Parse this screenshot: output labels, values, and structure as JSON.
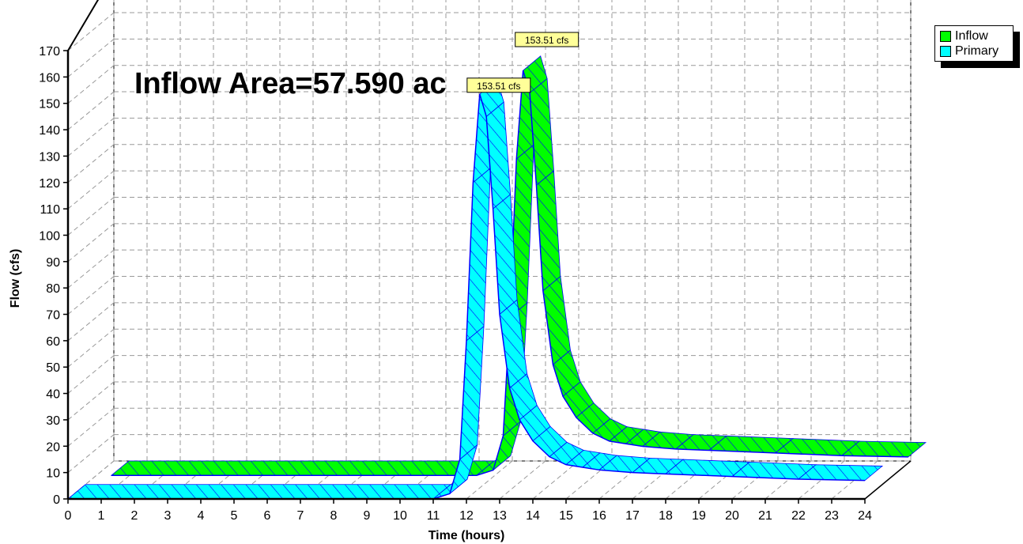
{
  "chart_data": {
    "type": "area",
    "title": "Inflow Area=57.590 ac",
    "xlabel": "Time  (hours)",
    "ylabel": "Flow  (cfs)",
    "xlim": [
      0,
      24
    ],
    "ylim": [
      0,
      170
    ],
    "x_ticks": [
      "0",
      "1",
      "2",
      "3",
      "4",
      "5",
      "6",
      "7",
      "8",
      "9",
      "10",
      "11",
      "12",
      "13",
      "14",
      "15",
      "16",
      "17",
      "18",
      "19",
      "20",
      "21",
      "22",
      "23",
      "24"
    ],
    "y_ticks": [
      "0",
      "10",
      "20",
      "30",
      "40",
      "50",
      "60",
      "70",
      "80",
      "90",
      "100",
      "110",
      "120",
      "130",
      "140",
      "150",
      "160",
      "170"
    ],
    "grid": true,
    "legend_position": "top-right",
    "x": [
      0,
      11,
      11.5,
      11.8,
      12.0,
      12.2,
      12.4,
      12.6,
      12.8,
      13.0,
      13.3,
      13.6,
      14.0,
      14.5,
      15.0,
      15.5,
      16.0,
      17.0,
      18.0,
      20.0,
      22.0,
      24.0
    ],
    "series": [
      {
        "name": "Inflow",
        "color": "#00ff00",
        "values": [
          0,
          0,
          2,
          15,
          60,
          120,
          153.51,
          145,
          110,
          70,
          42,
          30,
          22,
          16,
          13,
          12,
          11,
          10,
          9.5,
          8.5,
          7.5,
          7
        ],
        "peak_label": "153.51 cfs"
      },
      {
        "name": "Primary",
        "color": "#00ffff",
        "values": [
          0,
          0,
          2,
          15,
          60,
          120,
          153.51,
          145,
          110,
          70,
          42,
          30,
          22,
          16,
          13,
          12,
          11,
          10,
          9.5,
          8.5,
          7.5,
          7
        ],
        "peak_label": "153.51 cfs"
      }
    ]
  },
  "colors": {
    "inflow": "#00ff00",
    "primary": "#00ffff",
    "hatch": "#0000ff",
    "peak_label_bg": "#ffff99"
  }
}
